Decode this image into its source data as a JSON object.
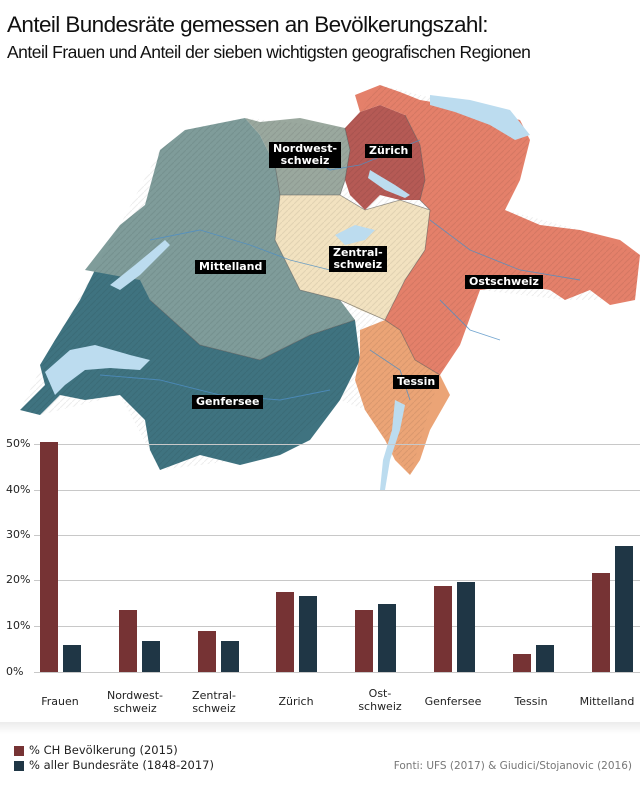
{
  "header": {
    "title": "Anteil Bundesräte gemessen an Bevölkerungszahl:",
    "subtitle": "Anteil Frauen und Anteil der sieben wichtigsten geografischen Regionen"
  },
  "map": {
    "regions": [
      {
        "name": "Nordwestschweiz",
        "label": "Nordwest-\nschweiz",
        "color": "#9aa89e"
      },
      {
        "name": "Zürich",
        "label": "Zürich",
        "color": "#b55a55"
      },
      {
        "name": "Mittelland",
        "label": "Mittelland",
        "color": "#7f9c9a"
      },
      {
        "name": "Zentralschweiz",
        "label": "Zentral-\nschweiz",
        "color": "#f2e2c0"
      },
      {
        "name": "Ostschweiz",
        "label": "Ostschweiz",
        "color": "#e4806a"
      },
      {
        "name": "Tessin",
        "label": "Tessin",
        "color": "#eba476"
      },
      {
        "name": "Genfersee",
        "label": "Genfersee",
        "color": "#3f7380"
      }
    ],
    "lake_color": "#bcdcef"
  },
  "chart_data": {
    "type": "bar",
    "title": "Anteil Bundesräte gemessen an Bevölkerungszahl",
    "categories": [
      "Frauen",
      "Nordwest-schweiz",
      "Zentral-schweiz",
      "Zürich",
      "Ost-schweiz",
      "Genfersee",
      "Tessin",
      "Mittelland"
    ],
    "category_labels": [
      [
        "Frauen"
      ],
      [
        "Nordwest-",
        "schweiz"
      ],
      [
        "Zentral-",
        "schweiz"
      ],
      [
        "Zürich"
      ],
      [
        "Ost-",
        "schweiz"
      ],
      [
        "Genfersee"
      ],
      [
        "Tessin"
      ],
      [
        "Mittelland"
      ]
    ],
    "series": [
      {
        "name": "% CH Bevölkerung (2015)",
        "color": "#763334",
        "values": [
          50.4,
          13.7,
          8.9,
          17.6,
          13.7,
          18.9,
          3.9,
          21.7
        ]
      },
      {
        "name": "% aller Bundesräte (1848-2017)",
        "color": "#1f3645",
        "values": [
          5.9,
          6.7,
          6.7,
          16.7,
          15.0,
          19.8,
          5.9,
          27.6
        ]
      }
    ],
    "yticks": [
      "0%",
      "10%",
      "20%",
      "30%",
      "40%",
      "50%"
    ],
    "ylim": [
      0,
      50
    ],
    "xlabel": "",
    "ylabel": "",
    "grid": true,
    "legend_position": "bottom-left"
  },
  "legend": {
    "items": [
      "% CH Bevölkerung (2015)",
      "% aller Bundesräte (1848-2017)"
    ]
  },
  "source": "Fonti: UFS (2017) & Giudici/Stojanovic (2016)"
}
